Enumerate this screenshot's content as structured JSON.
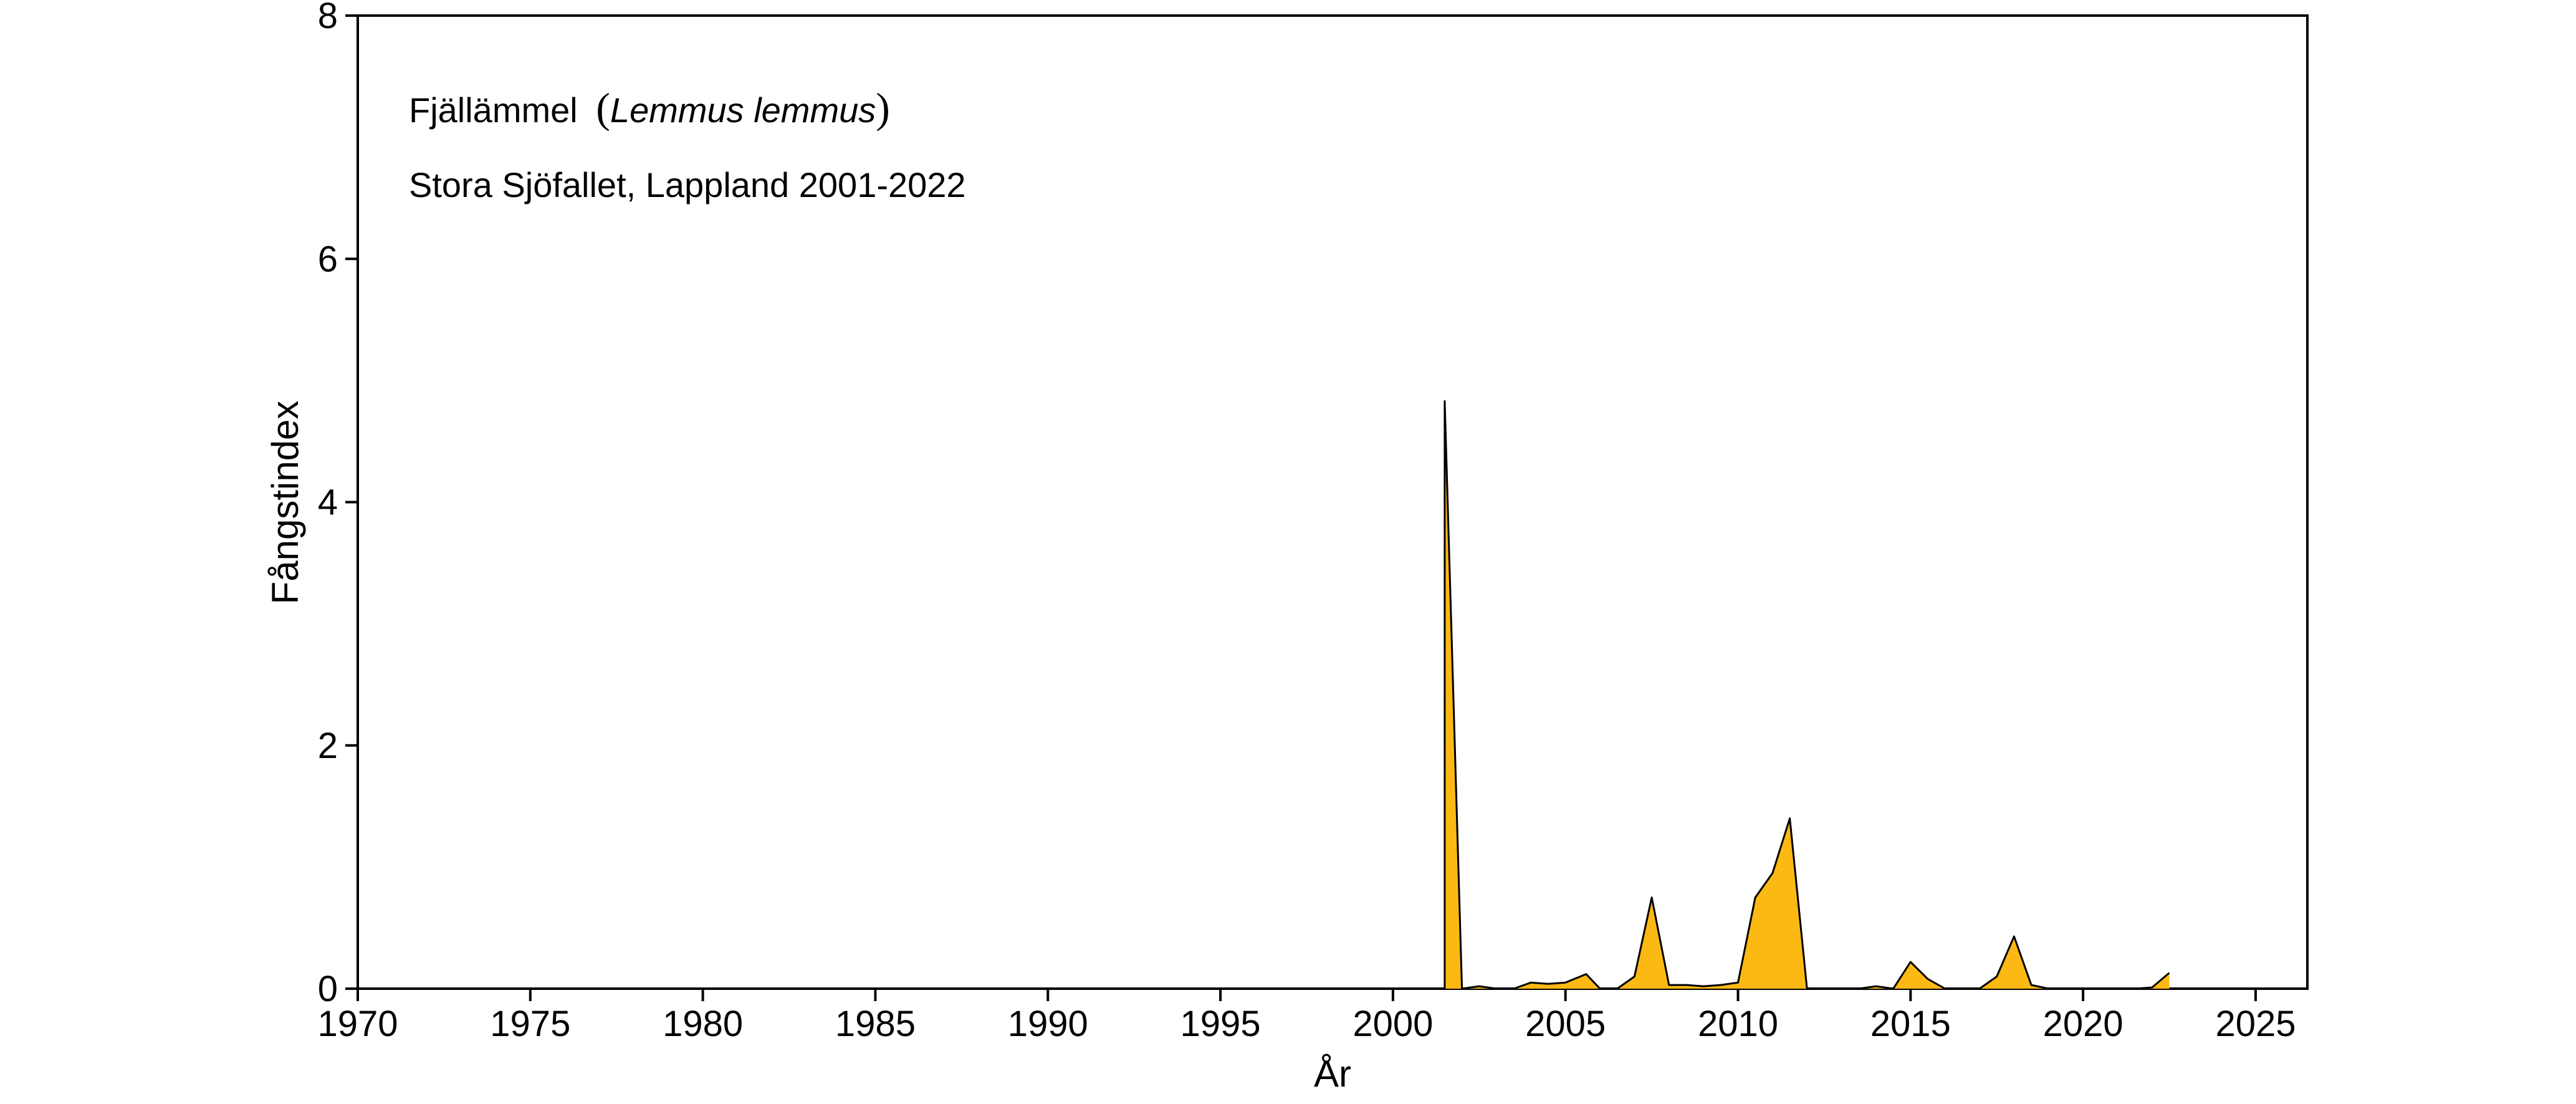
{
  "chart_data": {
    "type": "area",
    "title": "",
    "xlabel": "År",
    "ylabel": "Fångstindex",
    "xlim": [
      1970,
      2026.5
    ],
    "ylim": [
      0,
      8
    ],
    "x_ticks": [
      1970,
      1975,
      1980,
      1985,
      1990,
      1995,
      2000,
      2005,
      2010,
      2015,
      2020,
      2025
    ],
    "y_ticks": [
      0,
      2,
      4,
      6,
      8
    ],
    "grid": false,
    "legend": "none",
    "annotations": {
      "species_common": "Fjällämmel",
      "species_latin": "Lemmus lemmus",
      "paren_open": "(",
      "paren_close": ")",
      "site": "Stora Sjöfallet, Lappland 2001-2022"
    },
    "colors": {
      "fill": "#FDB913",
      "stroke": "#000000",
      "axis": "#000000"
    },
    "series": [
      {
        "x": [
          2001.5,
          2001.5,
          2002.0,
          2002.5,
          2003.0,
          2003.5,
          2004.0,
          2004.5,
          2005.0,
          2005.6,
          2006.0,
          2006.5,
          2007.0,
          2007.5,
          2008.0,
          2008.5,
          2009.0,
          2009.5,
          2010.0,
          2010.5,
          2011.0,
          2011.5,
          2012.0,
          2012.5,
          2013.0,
          2013.5,
          2014.0,
          2014.5,
          2015.0,
          2015.5,
          2016.0,
          2016.5,
          2017.0,
          2017.5,
          2018.0,
          2018.5,
          2019.0,
          2019.5,
          2020.0,
          2020.5,
          2021.0,
          2021.5,
          2022.0,
          2022.5
        ],
        "values": [
          0,
          4.83,
          0,
          0.02,
          0,
          0,
          0.05,
          0.04,
          0.05,
          0.12,
          0,
          0,
          0.1,
          0.75,
          0.03,
          0.03,
          0.02,
          0.03,
          0.05,
          0.75,
          0.95,
          1.4,
          0,
          0,
          0,
          0,
          0.02,
          0,
          0.22,
          0.08,
          0,
          0,
          0,
          0.1,
          0.43,
          0.03,
          0,
          0,
          0,
          0,
          0,
          0,
          0.01,
          0.13
        ]
      }
    ]
  }
}
